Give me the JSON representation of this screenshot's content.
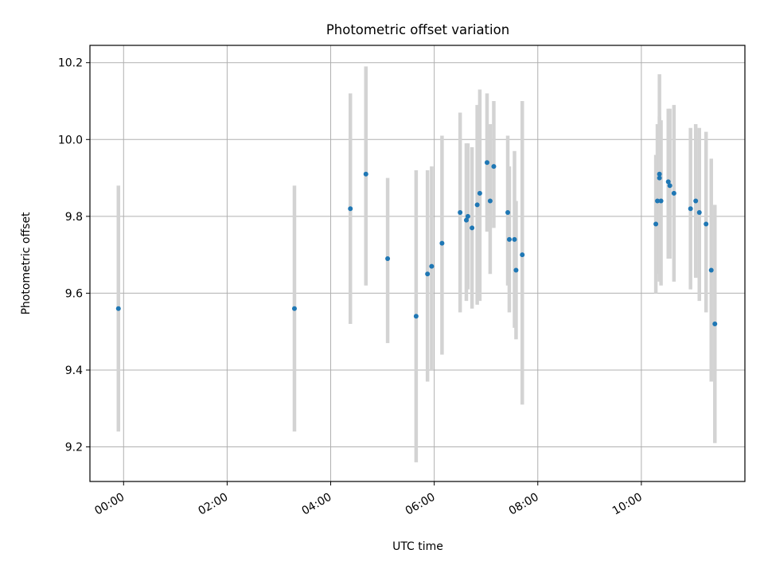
{
  "chart_data": {
    "type": "scatter",
    "title": "Photometric offset variation",
    "xlabel": "UTC time",
    "ylabel": "Photometric offset",
    "x_unit": "hours",
    "xlim": [
      -0.65,
      12.0
    ],
    "ylim": [
      9.11,
      10.245
    ],
    "grid": true,
    "x_ticks": [
      {
        "value": 0,
        "label": "00:00"
      },
      {
        "value": 2,
        "label": "02:00"
      },
      {
        "value": 4,
        "label": "04:00"
      },
      {
        "value": 6,
        "label": "06:00"
      },
      {
        "value": 8,
        "label": "08:00"
      },
      {
        "value": 10,
        "label": "10:00"
      }
    ],
    "y_ticks": [
      {
        "value": 9.2,
        "label": "9.2"
      },
      {
        "value": 9.4,
        "label": "9.4"
      },
      {
        "value": 9.6,
        "label": "9.6"
      },
      {
        "value": 9.8,
        "label": "9.8"
      },
      {
        "value": 10.0,
        "label": "10.0"
      },
      {
        "value": 10.2,
        "label": "10.2"
      }
    ],
    "colors": {
      "point": "#1f77b4",
      "errorbar": "#d3d3d3",
      "grid": "#b0b0b0"
    },
    "points": [
      {
        "x": -0.1,
        "y": 9.56,
        "lo": 9.24,
        "hi": 9.88
      },
      {
        "x": 3.3,
        "y": 9.56,
        "lo": 9.24,
        "hi": 9.88
      },
      {
        "x": 4.38,
        "y": 9.82,
        "lo": 9.52,
        "hi": 10.12
      },
      {
        "x": 4.68,
        "y": 9.91,
        "lo": 9.62,
        "hi": 10.19
      },
      {
        "x": 5.1,
        "y": 9.69,
        "lo": 9.47,
        "hi": 9.9
      },
      {
        "x": 5.65,
        "y": 9.54,
        "lo": 9.16,
        "hi": 9.92
      },
      {
        "x": 5.87,
        "y": 9.65,
        "lo": 9.37,
        "hi": 9.92
      },
      {
        "x": 5.95,
        "y": 9.67,
        "lo": 9.4,
        "hi": 9.93
      },
      {
        "x": 6.15,
        "y": 9.73,
        "lo": 9.44,
        "hi": 10.01
      },
      {
        "x": 6.5,
        "y": 9.81,
        "lo": 9.55,
        "hi": 10.07
      },
      {
        "x": 6.62,
        "y": 9.79,
        "lo": 9.58,
        "hi": 9.99
      },
      {
        "x": 6.65,
        "y": 9.8,
        "lo": 9.61,
        "hi": 9.99
      },
      {
        "x": 6.73,
        "y": 9.77,
        "lo": 9.56,
        "hi": 9.98
      },
      {
        "x": 6.83,
        "y": 9.83,
        "lo": 9.57,
        "hi": 10.09
      },
      {
        "x": 6.88,
        "y": 9.86,
        "lo": 9.58,
        "hi": 10.13
      },
      {
        "x": 7.02,
        "y": 9.94,
        "lo": 9.76,
        "hi": 10.12
      },
      {
        "x": 7.08,
        "y": 9.84,
        "lo": 9.65,
        "hi": 10.04
      },
      {
        "x": 7.15,
        "y": 9.93,
        "lo": 9.77,
        "hi": 10.1
      },
      {
        "x": 7.42,
        "y": 9.81,
        "lo": 9.62,
        "hi": 10.01
      },
      {
        "x": 7.45,
        "y": 9.74,
        "lo": 9.55,
        "hi": 9.93
      },
      {
        "x": 7.55,
        "y": 9.74,
        "lo": 9.51,
        "hi": 9.97
      },
      {
        "x": 7.58,
        "y": 9.66,
        "lo": 9.48,
        "hi": 9.84
      },
      {
        "x": 7.7,
        "y": 9.7,
        "lo": 9.31,
        "hi": 10.1
      },
      {
        "x": 10.28,
        "y": 9.78,
        "lo": 9.6,
        "hi": 9.96
      },
      {
        "x": 10.31,
        "y": 9.84,
        "lo": 9.65,
        "hi": 10.04
      },
      {
        "x": 10.35,
        "y": 9.91,
        "lo": 9.75,
        "hi": 10.06
      },
      {
        "x": 10.38,
        "y": 9.84,
        "lo": 9.62,
        "hi": 10.05
      },
      {
        "x": 10.35,
        "y": 9.9,
        "lo": 9.63,
        "hi": 10.17
      },
      {
        "x": 10.52,
        "y": 9.89,
        "lo": 9.69,
        "hi": 10.08
      },
      {
        "x": 10.55,
        "y": 9.88,
        "lo": 9.69,
        "hi": 10.08
      },
      {
        "x": 10.63,
        "y": 9.86,
        "lo": 9.63,
        "hi": 10.09
      },
      {
        "x": 10.95,
        "y": 9.82,
        "lo": 9.61,
        "hi": 10.03
      },
      {
        "x": 11.05,
        "y": 9.84,
        "lo": 9.64,
        "hi": 10.04
      },
      {
        "x": 11.12,
        "y": 9.81,
        "lo": 9.58,
        "hi": 10.03
      },
      {
        "x": 11.25,
        "y": 9.78,
        "lo": 9.55,
        "hi": 10.02
      },
      {
        "x": 11.35,
        "y": 9.66,
        "lo": 9.37,
        "hi": 9.95
      },
      {
        "x": 11.42,
        "y": 9.52,
        "lo": 9.21,
        "hi": 9.83
      }
    ]
  }
}
